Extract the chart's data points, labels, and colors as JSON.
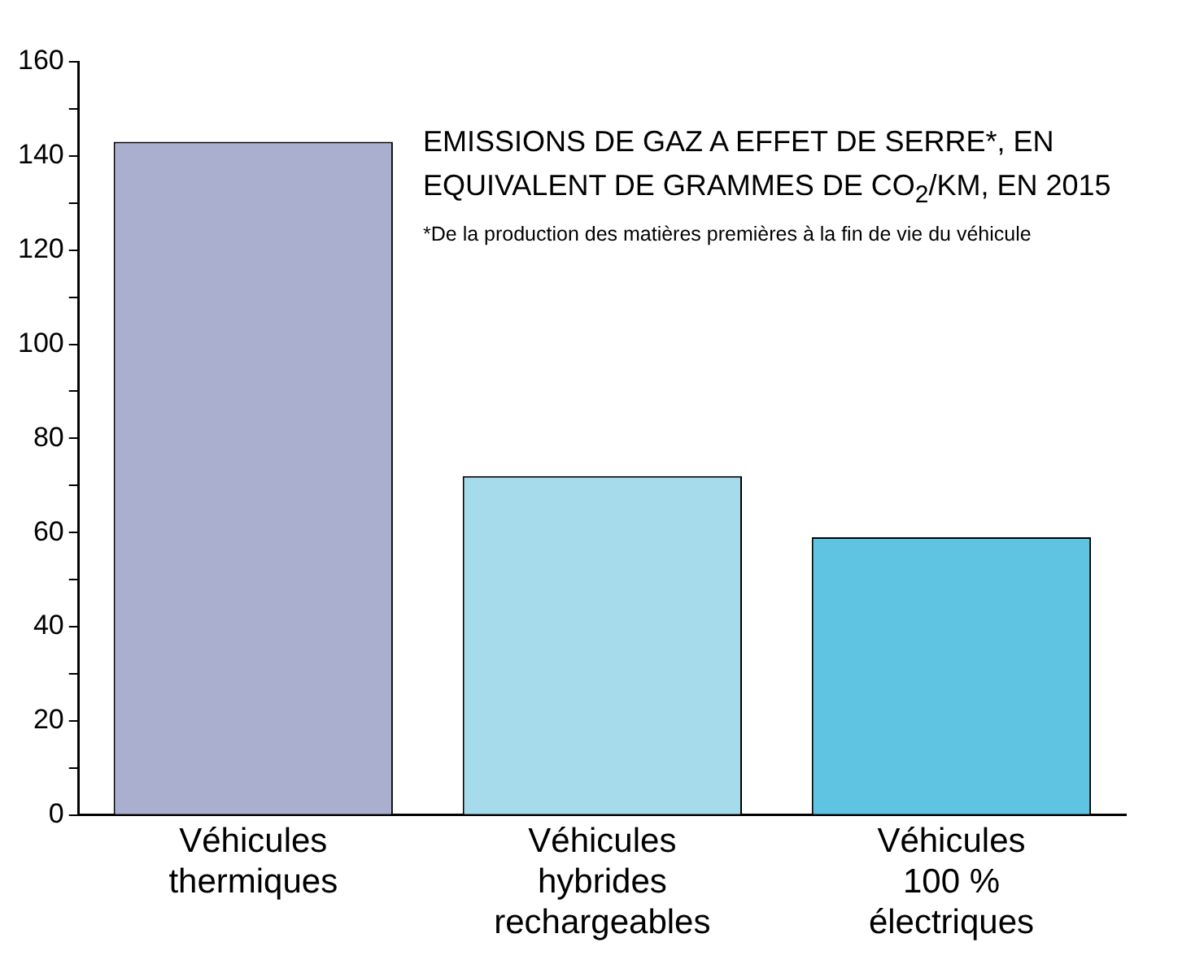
{
  "chart_data": {
    "type": "bar",
    "title": "EMISSIONS DE GAZ A EFFET DE SERRE*, EN EQUIVALENT DE GRAMMES DE CO$_{2}$/KM, EN 2015",
    "annotations": [
      "*De la production des matières premières à la fin de vie du véhicule"
    ],
    "categories": [
      "Véhicules\nthermiques",
      "Véhicules\nhybrides\nrechargeables",
      "Véhicules\n100 %\nélectriques"
    ],
    "values": [
      143,
      72,
      59
    ],
    "colors": [
      "#aaaecf",
      "#a6dbec",
      "#5ec4e2"
    ],
    "ylim": [
      0,
      160
    ],
    "yticks": [
      0,
      {
        "value": 10,
        "label": null
      },
      20,
      {
        "value": 30,
        "label": null
      },
      40,
      {
        "value": 50,
        "label": null
      },
      60,
      {
        "value": 70,
        "label": null
      },
      80,
      {
        "value": 90,
        "label": null
      },
      100,
      {
        "value": 110,
        "label": null
      },
      120,
      {
        "value": 130,
        "label": null
      },
      140,
      {
        "value": 150,
        "label": null
      },
      160
    ],
    "grid": false,
    "legend": false
  }
}
